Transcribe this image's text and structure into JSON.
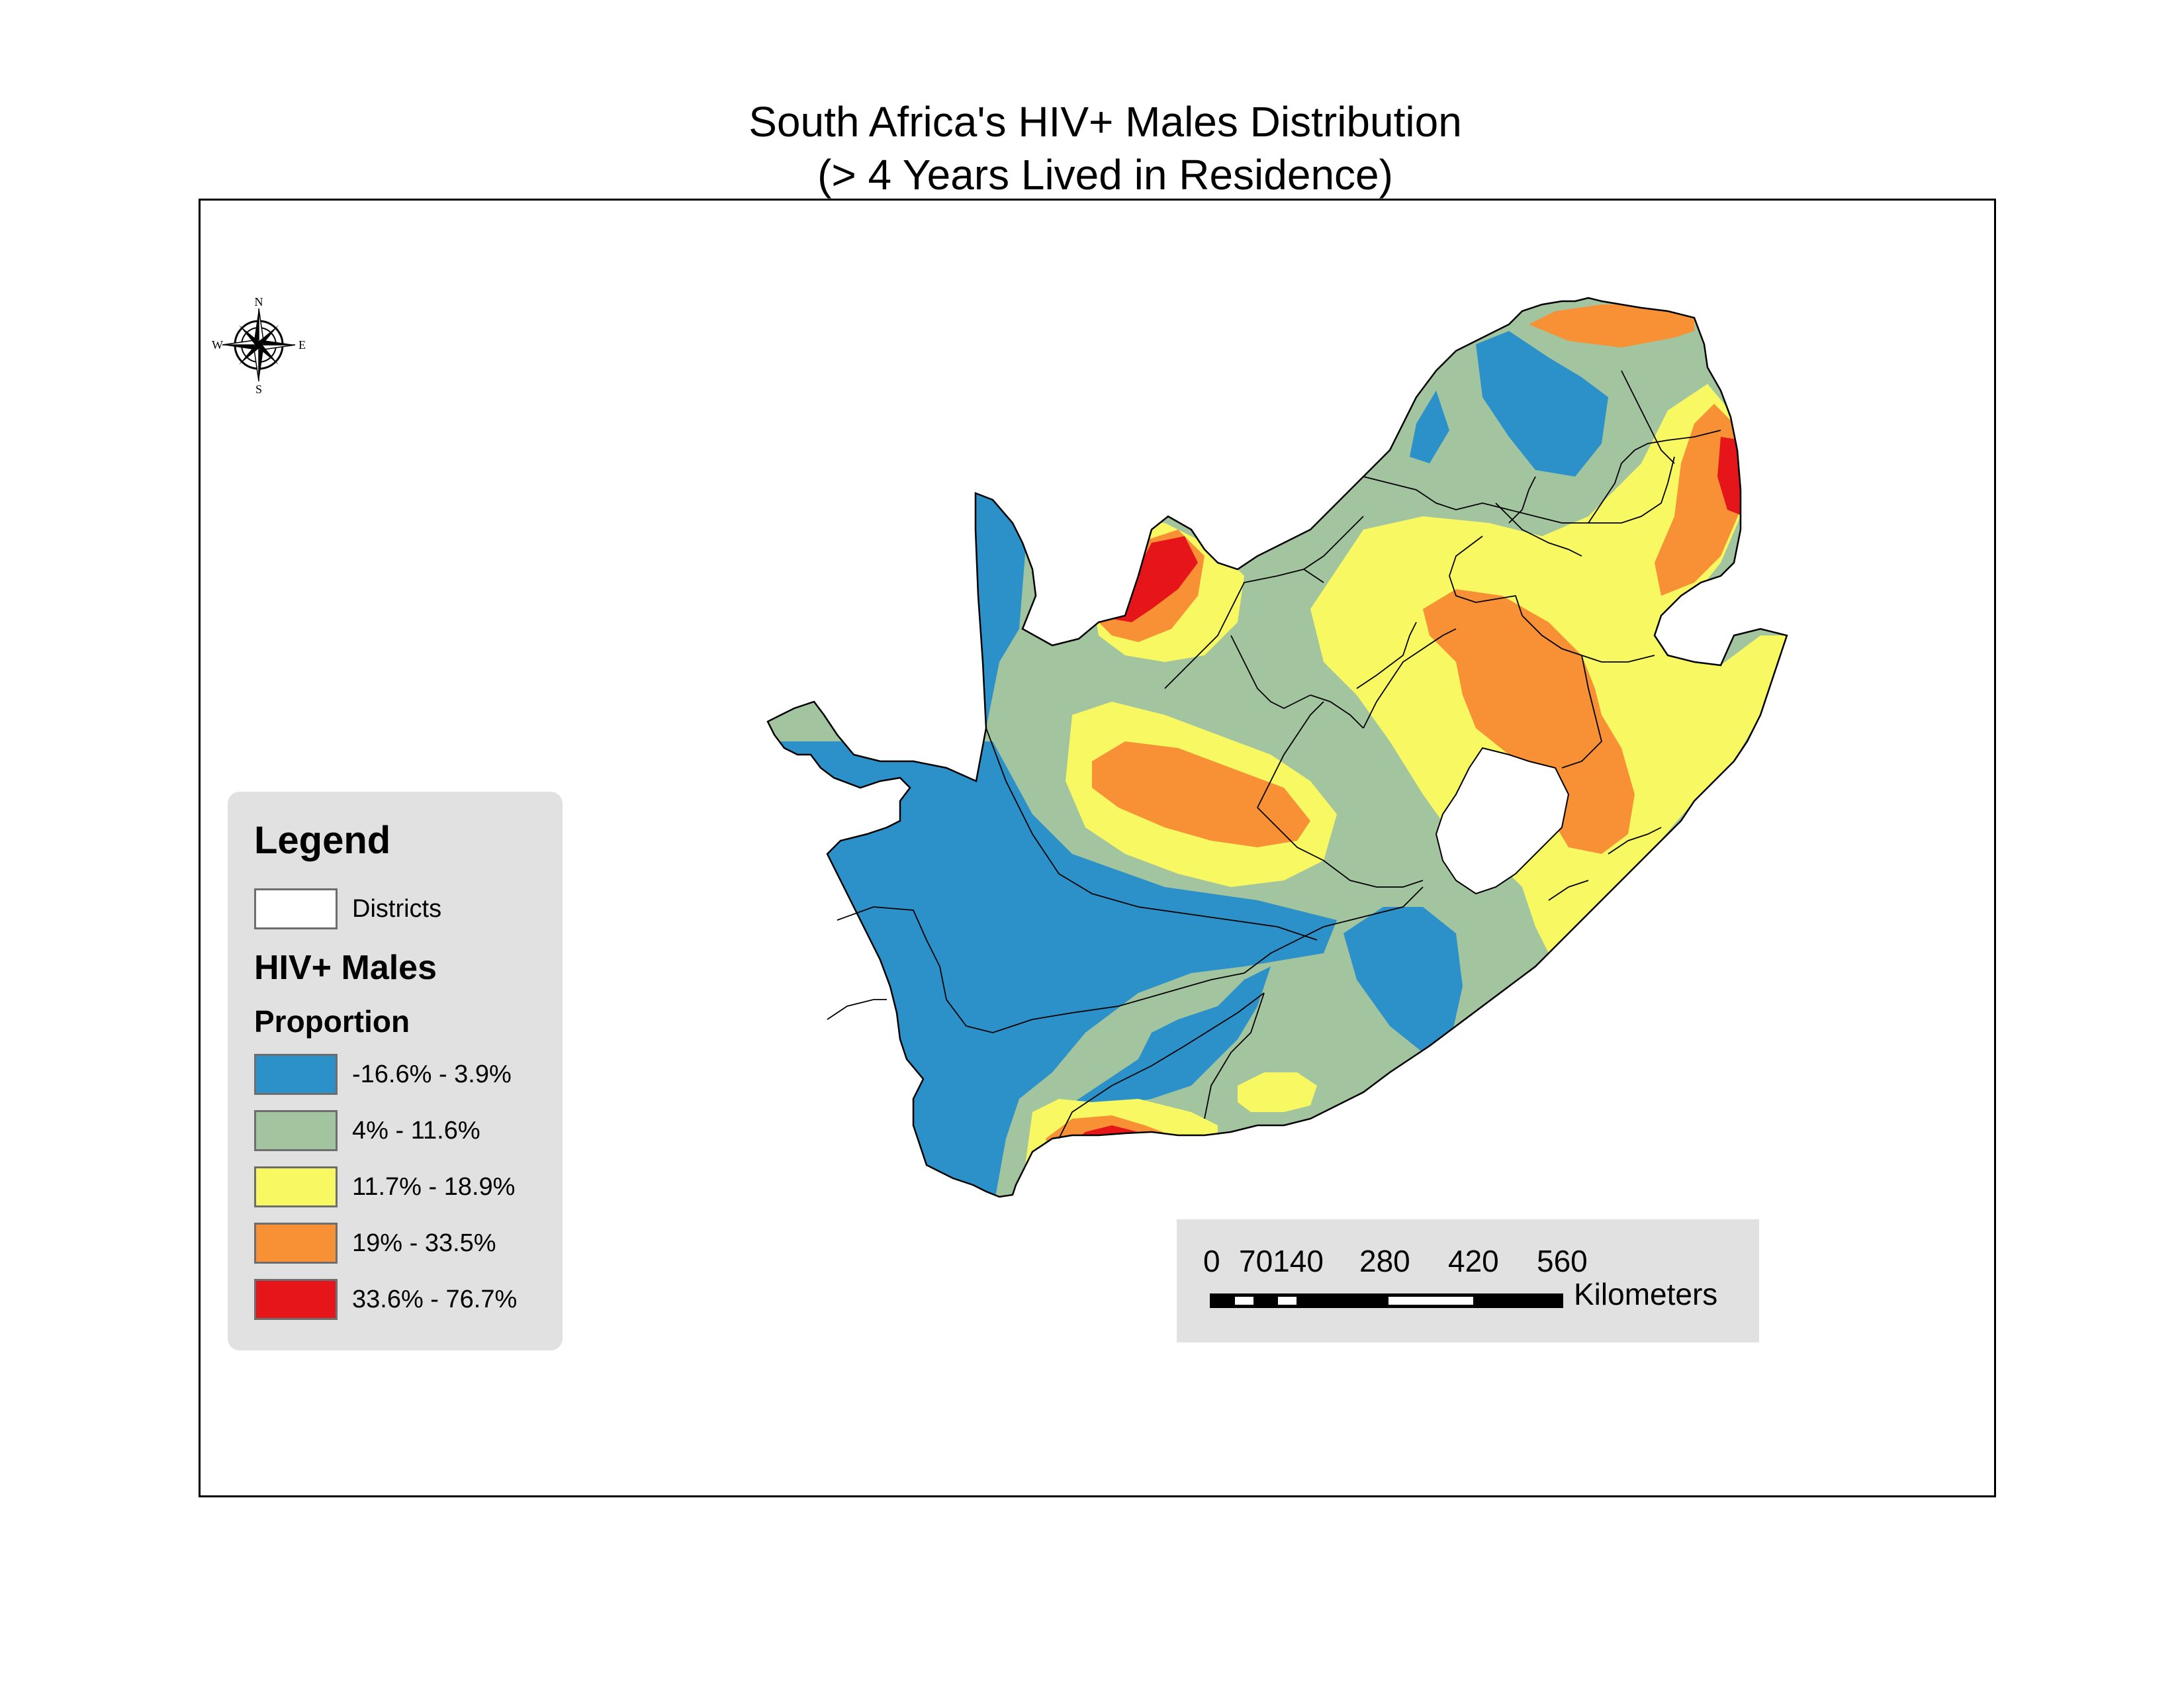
{
  "title": {
    "line1": "South Africa's HIV+ Males Distribution",
    "line2": "(> 4 Years Lived in Residence)"
  },
  "compass": {
    "n": "N",
    "s": "S",
    "e": "E",
    "w": "W"
  },
  "legend": {
    "title": "Legend",
    "districts_label": "Districts",
    "layer_name": "HIV+ Males",
    "field_name": "Proportion",
    "classes": [
      {
        "label": "-16.6% - 3.9%",
        "color": "#2b91c8"
      },
      {
        "label": "4% - 11.6%",
        "color": "#a2c49e"
      },
      {
        "label": "11.7% - 18.9%",
        "color": "#f8f862"
      },
      {
        "label": "19% - 33.5%",
        "color": "#f89036"
      },
      {
        "label": "33.6% - 76.7%",
        "color": "#e5151a"
      }
    ]
  },
  "scalebar": {
    "ticks": [
      "0",
      "70140",
      "280",
      "420",
      "560"
    ],
    "unit": "Kilometers"
  },
  "colors": {
    "blue": "#2b91c8",
    "green": "#a2c49e",
    "yellow": "#f8f862",
    "orange": "#f89036",
    "red": "#e5151a",
    "legend_bg": "#e1e1e1"
  }
}
